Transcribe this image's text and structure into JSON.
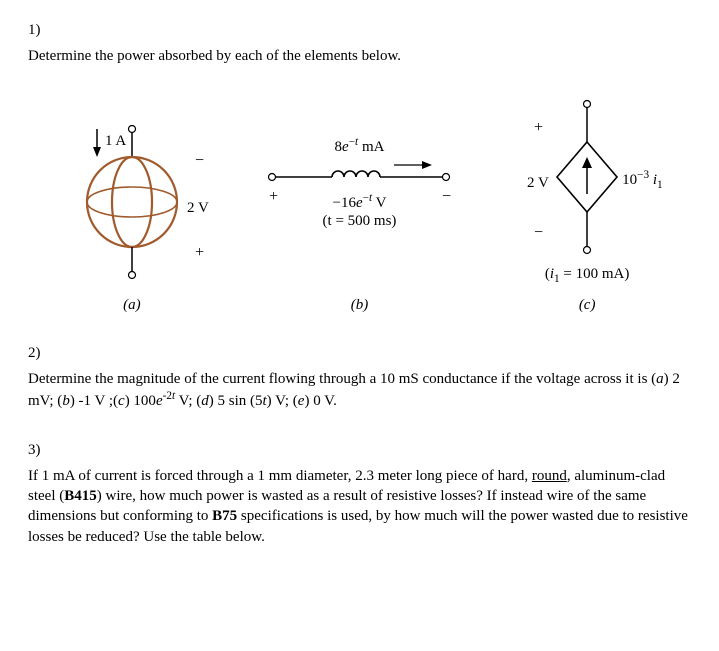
{
  "q1": {
    "number": "1)",
    "text": "Determine the power absorbed by each of the elements below.",
    "figA": {
      "current_label": "1 A",
      "voltage_label": "2 V",
      "plus": "−",
      "minus": "+",
      "caption": "(a)",
      "stroke": "#000000",
      "fill": "#ffffff",
      "accent": "#a05a2c"
    },
    "figB": {
      "top_label_html": "8<span class='ital'>e</span><sup>−<span class='ital'>t</span></sup> mA",
      "voltage_html": "−16<span class='ital'>e</span><sup>−<span class='ital'>t</span></sup> V",
      "time_label": "(t = 500 ms)",
      "plus": "+",
      "minus": "−",
      "caption": "(b)",
      "stroke": "#000000"
    },
    "figC": {
      "voltage_label": "2 V",
      "gain_html": "10<sup>−3</sup> <span class='ital'>i</span><sub>1</sub>",
      "plus": "+",
      "minus": "−",
      "note_html": "(<span class='ital'>i</span><sub>1</sub> = 100 mA)",
      "caption": "(c)",
      "stroke": "#000000"
    }
  },
  "q2": {
    "number": "2)",
    "text_html": "Determine the magnitude of the current flowing through a 10 mS conductance if the voltage across it is (<span class='ital'>a</span>) 2 mV; (<span class='ital'>b</span>) -1 V ;(<span class='ital'>c</span>) 100<span class='ital'>e</span><sup>-2<span class='ital'>t</span></sup> V; (<span class='ital'>d</span>) 5 sin (5<span class='ital'>t</span>) V; (<span class='ital'>e</span>) 0 V."
  },
  "q3": {
    "number": "3)",
    "text_html": "If 1 mA of current is forced through a 1 mm diameter, 2.3 meter long piece of hard, <span class='underline'>round</span>, aluminum-clad steel (<b>B415</b>) wire, how much power is wasted as a result of resistive losses? If instead wire of the same dimensions but conforming to <b>B75</b> specifications is used, by how much will the power wasted due to resistive losses be reduced? Use the table below."
  }
}
